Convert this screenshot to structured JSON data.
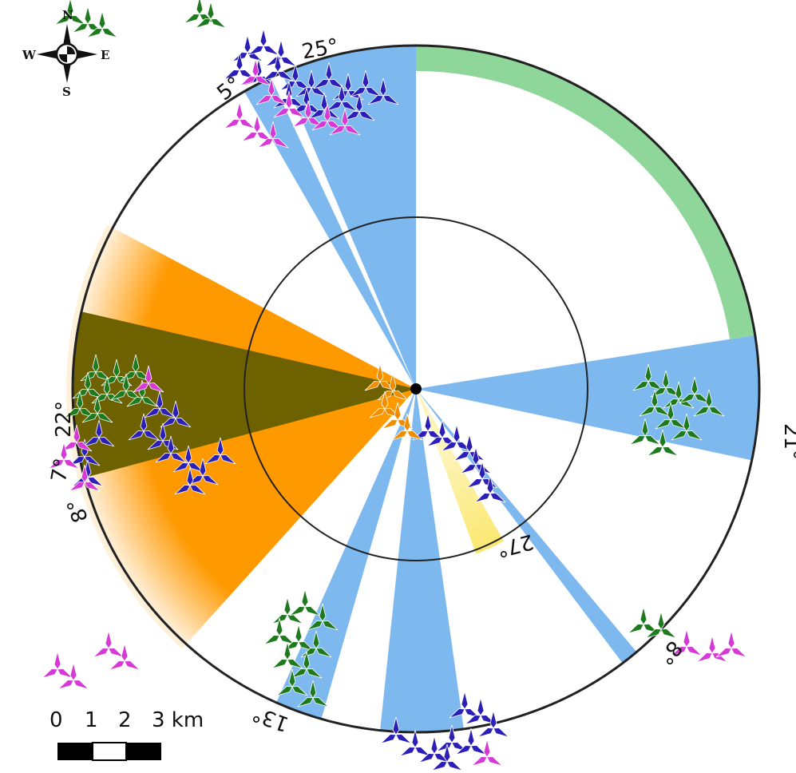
{
  "compass": {
    "n": "N",
    "s": "S",
    "e": "E",
    "w": "W"
  },
  "sector_labels": [
    "25°",
    "5°",
    "21°",
    "27°",
    "22°",
    "7°",
    "8°",
    "13°",
    "8°"
  ],
  "scale_bar": {
    "ticks": [
      "0",
      "1",
      "2",
      "3 km"
    ]
  },
  "colors": {
    "blue_sector": "#7db8ef",
    "green_band": "#8fd69a",
    "orange_sector": "#ff9900",
    "olive_overlap": "#6e6200",
    "yellow_sector": "#fbe870",
    "turbine_blue": "#2b1fb8",
    "turbine_green": "#1f7a1f",
    "turbine_magenta": "#d63ad6",
    "turbine_orange": "#f08c00"
  }
}
